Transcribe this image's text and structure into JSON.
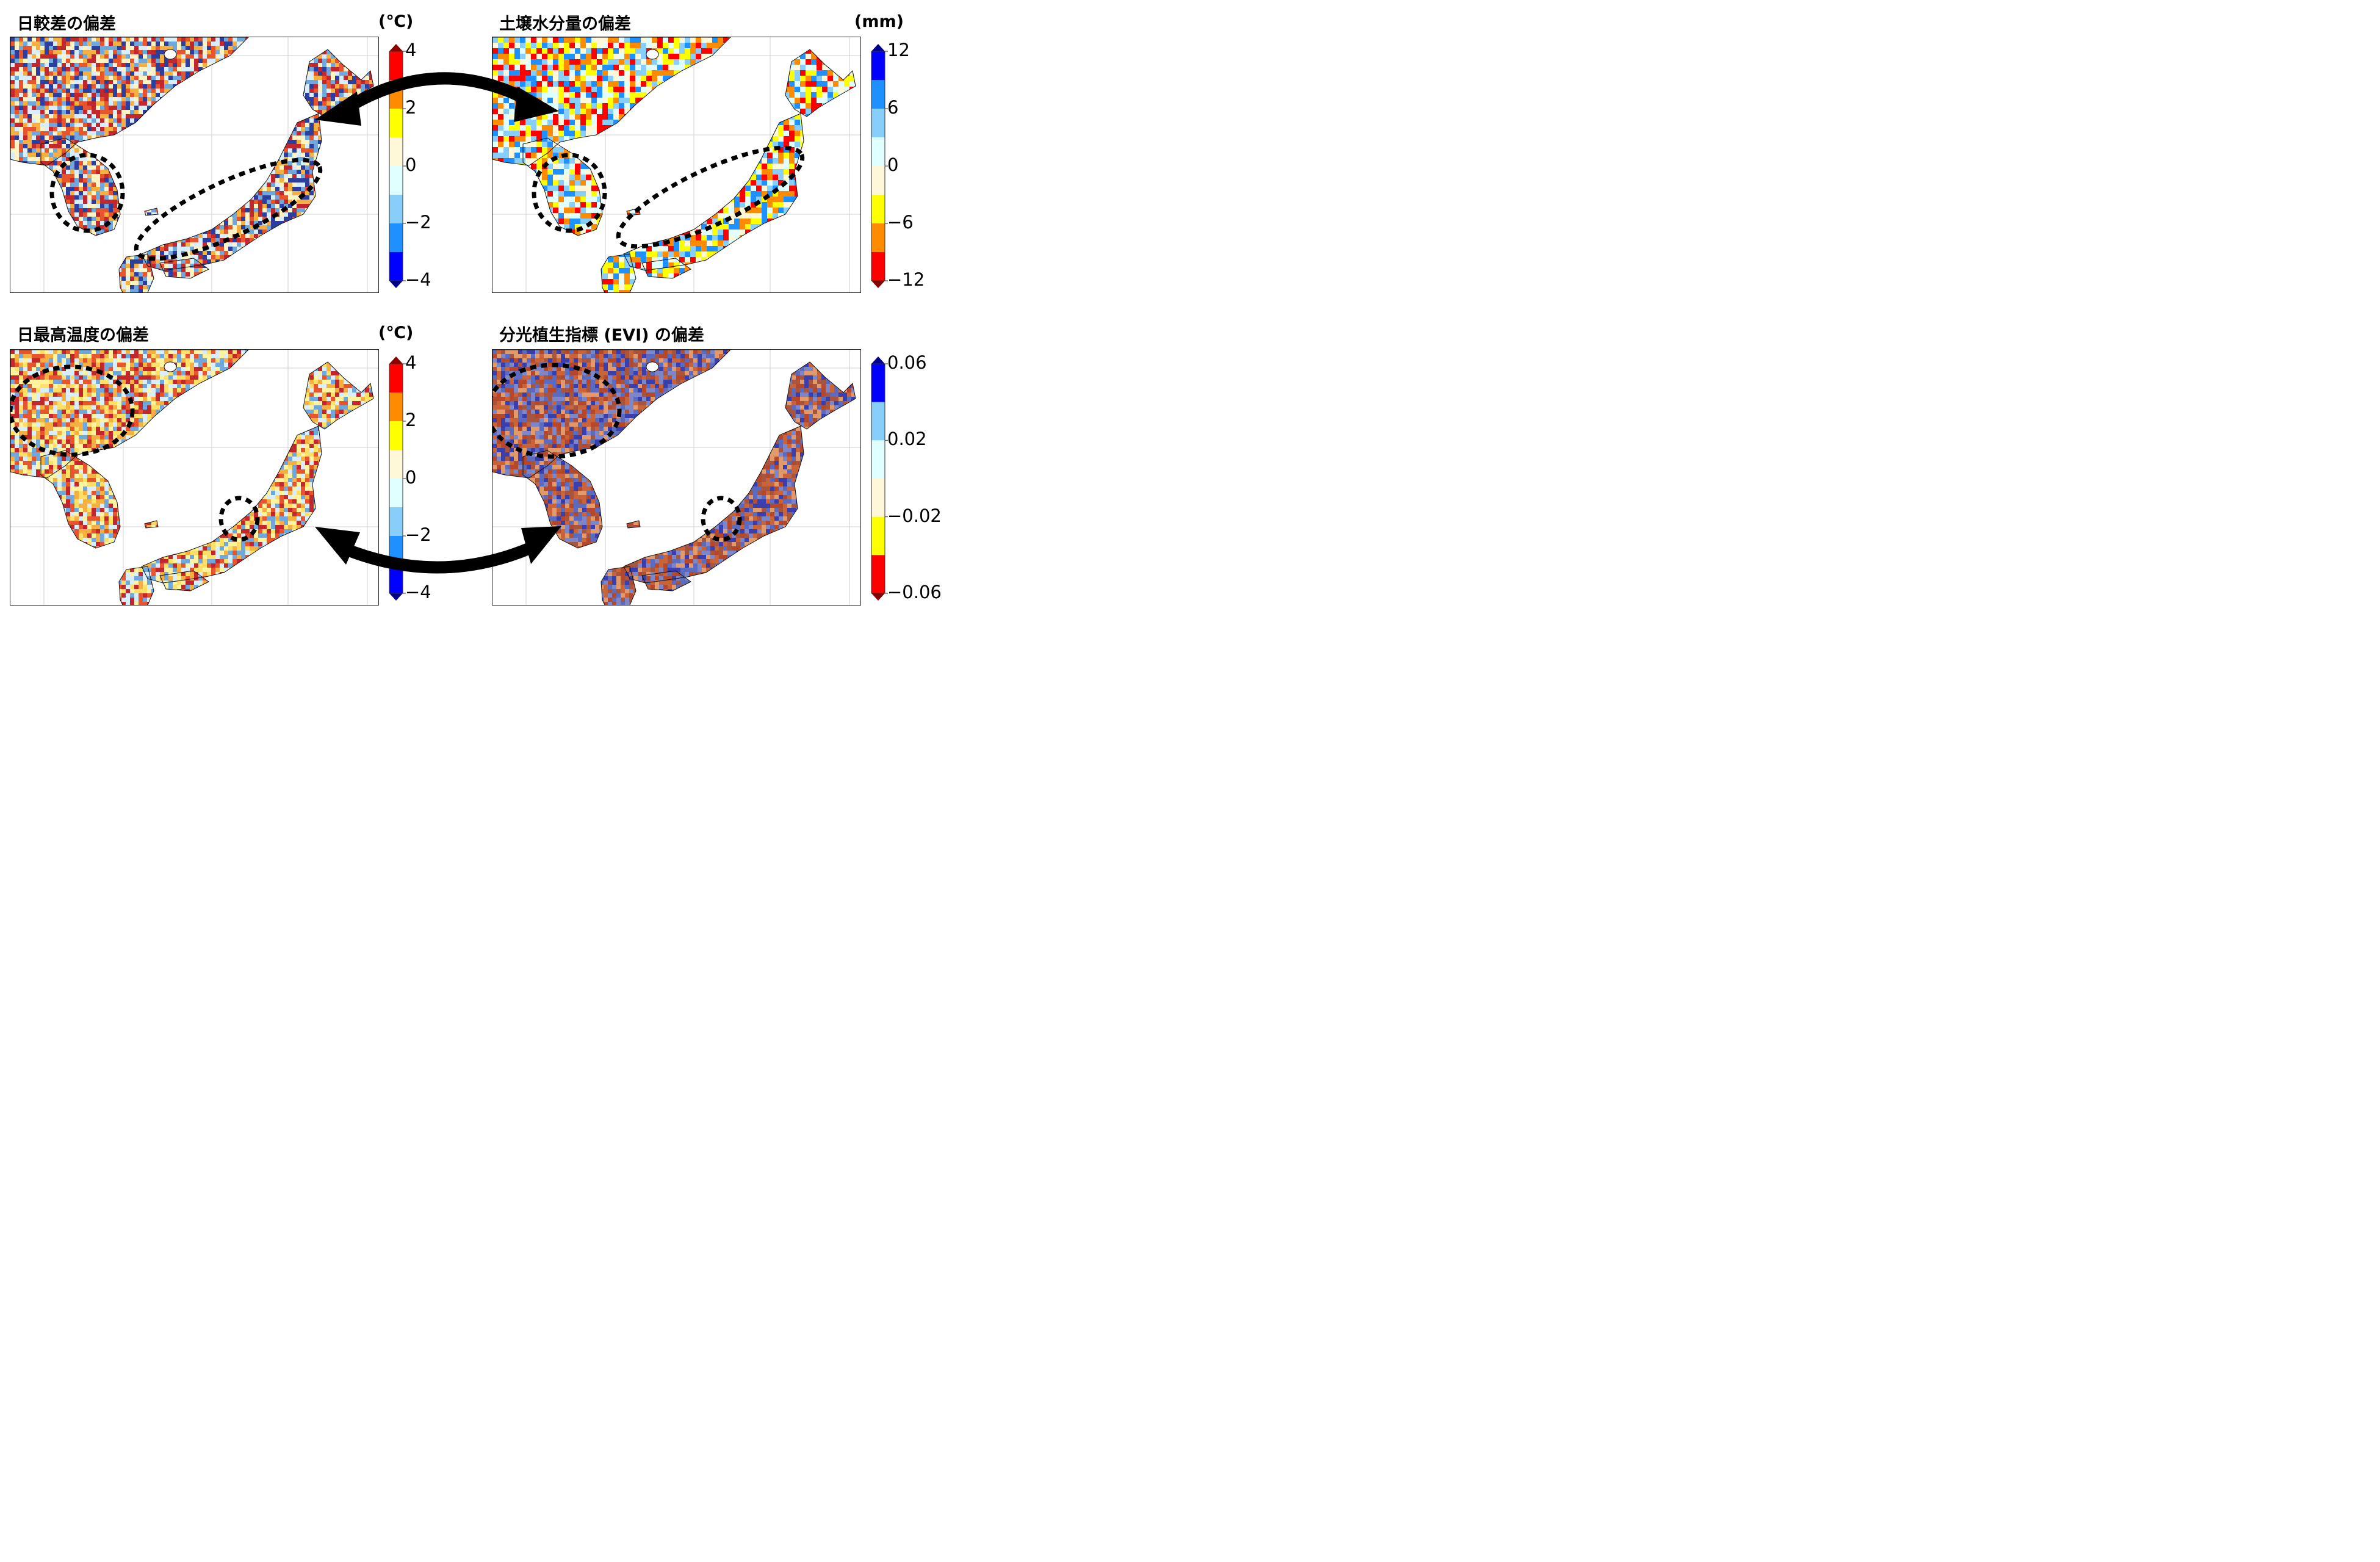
{
  "panels": [
    {
      "id": "dtr",
      "title": "日較差の偏差",
      "unit": "(℃)",
      "colorbar": {
        "ticks": [
          "4",
          "2",
          "0",
          "−2",
          "−4"
        ],
        "colors": [
          "#ff0000",
          "#ff8c00",
          "#ffff00",
          "#fff8d8",
          "#e0ffff",
          "#87cefa",
          "#1e90ff",
          "#0000ff"
        ],
        "over_color": "#8b0000",
        "under_color": "#00008b",
        "direction": "top-red"
      },
      "map_palette": [
        "#c1272d",
        "#e8552d",
        "#f5b041",
        "#fff3c4",
        "#d8eefc",
        "#6fa8dc",
        "#2c3e9e"
      ]
    },
    {
      "id": "soil",
      "title": "土壌水分量の偏差",
      "unit": "(mm)",
      "colorbar": {
        "ticks": [
          "12",
          "6",
          "0",
          "−6",
          "−12"
        ],
        "colors": [
          "#0000ff",
          "#1e90ff",
          "#87cefa",
          "#e0ffff",
          "#fff8d8",
          "#ffff00",
          "#ff8c00",
          "#ff0000"
        ],
        "over_color": "#00008b",
        "under_color": "#8b0000",
        "direction": "top-blue"
      },
      "map_palette": [
        "#e0ffff",
        "#fff8d8",
        "#ffff00",
        "#ff8c00",
        "#ff0000",
        "#87cefa",
        "#1e90ff"
      ]
    },
    {
      "id": "tmax",
      "title": "日最高温度の偏差",
      "unit": "(℃)",
      "colorbar": {
        "ticks": [
          "4",
          "2",
          "0",
          "−2",
          "−4"
        ],
        "colors": [
          "#ff0000",
          "#ff8c00",
          "#ffff00",
          "#fff8d8",
          "#e0ffff",
          "#87cefa",
          "#1e90ff",
          "#0000ff"
        ],
        "over_color": "#8b0000",
        "under_color": "#00008b",
        "direction": "top-red"
      },
      "map_palette": [
        "#fff3a0",
        "#ffe066",
        "#f5b041",
        "#e8552d",
        "#c1272d",
        "#d8eefc",
        "#6fa8dc"
      ]
    },
    {
      "id": "evi",
      "title": "分光植生指標 (EVI) の偏差",
      "unit": "",
      "colorbar": {
        "ticks": [
          "0.06",
          "0.02",
          "−0.02",
          "−0.06"
        ],
        "colors": [
          "#0000ff",
          "#87cefa",
          "#e0ffff",
          "#fff8d8",
          "#ffff00",
          "#ff0000"
        ],
        "over_color": "#00008b",
        "under_color": "#8b0000",
        "direction": "top-blue"
      },
      "map_palette": [
        "#b5472a",
        "#c8633a",
        "#a8553f",
        "#5b6bbf",
        "#3a3fb0",
        "#e39a6a",
        "#7d86c9"
      ]
    }
  ]
}
